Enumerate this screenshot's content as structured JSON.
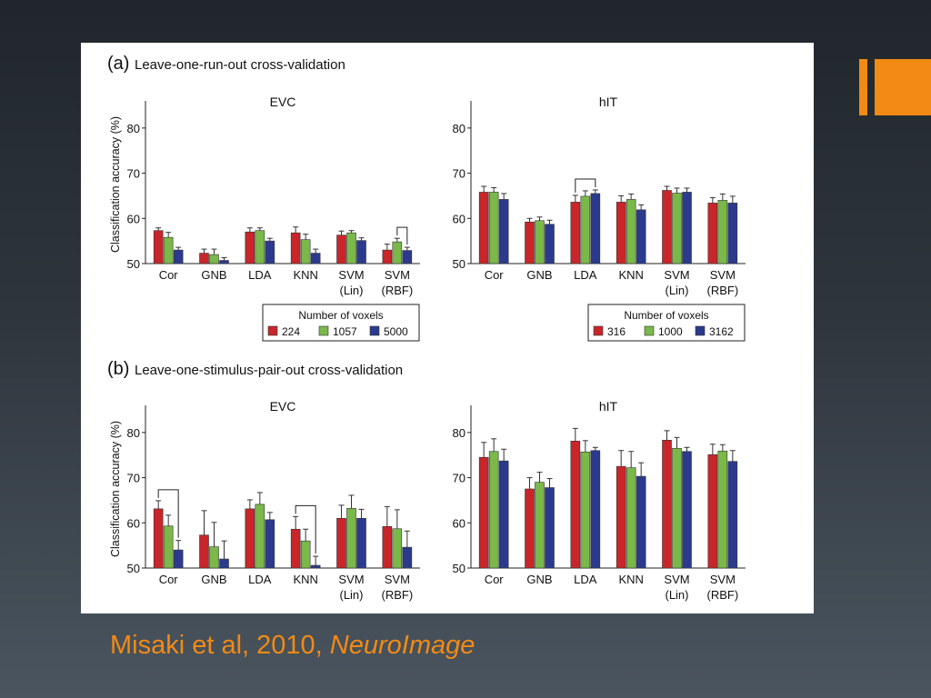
{
  "colors": {
    "accent": "#f28a14",
    "series": [
      "#c8262a",
      "#7ab84a",
      "#2b3a8c"
    ]
  },
  "citation": {
    "text": "Misaki et al, 2010, ",
    "journal": "NeuroImage"
  },
  "figure": {
    "y_axis_label": "Classification accuracy (%)",
    "categories": [
      "Cor",
      "GNB",
      "LDA",
      "KNN",
      "SVM\n(Lin)",
      "SVM\n(RBF)"
    ],
    "panels": [
      {
        "label": "(a)",
        "heading": "Leave-one-run-out cross-validation",
        "legend_title": "Number of voxels"
      },
      {
        "label": "(b)",
        "heading": "Leave-one-stimulus-pair-out cross-validation"
      }
    ]
  },
  "chart_data": [
    {
      "type": "bar",
      "panel": "(a)",
      "title": "EVC",
      "ylabel": "Classification accuracy (%)",
      "ylim": [
        50,
        85
      ],
      "yticks": [
        50,
        60,
        70,
        80
      ],
      "categories": [
        "Cor",
        "GNB",
        "LDA",
        "KNN",
        "SVM (Lin)",
        "SVM (RBF)"
      ],
      "legend_title": "Number of voxels",
      "series": [
        {
          "name": "224",
          "color": "#c8262a",
          "values": [
            57.3,
            52.3,
            57.0,
            56.8,
            56.3,
            53.0
          ],
          "errors": [
            0.6,
            0.9,
            0.9,
            1.3,
            0.9,
            1.3
          ]
        },
        {
          "name": "1057",
          "color": "#7ab84a",
          "values": [
            55.8,
            52.0,
            57.3,
            55.3,
            56.8,
            54.8
          ],
          "errors": [
            1.1,
            1.2,
            0.6,
            1.2,
            0.5,
            0.8
          ]
        },
        {
          "name": "5000",
          "color": "#2b3a8c",
          "values": [
            53.0,
            50.7,
            55.0,
            52.3,
            55.1,
            52.9
          ],
          "errors": [
            0.6,
            0.6,
            0.6,
            0.9,
            0.6,
            0.7
          ]
        }
      ],
      "significance": [
        {
          "category": "SVM (RBF)",
          "from": 1,
          "to": 2
        }
      ]
    },
    {
      "type": "bar",
      "panel": "(a)",
      "title": "hIT",
      "ylim": [
        50,
        85
      ],
      "yticks": [
        50,
        60,
        70,
        80
      ],
      "categories": [
        "Cor",
        "GNB",
        "LDA",
        "KNN",
        "SVM (Lin)",
        "SVM (RBF)"
      ],
      "legend_title": "Number of voxels",
      "series": [
        {
          "name": "316",
          "color": "#c8262a",
          "values": [
            65.8,
            59.2,
            63.6,
            63.6,
            66.2,
            63.4
          ],
          "errors": [
            1.3,
            0.8,
            1.5,
            1.4,
            0.9,
            1.2
          ]
        },
        {
          "name": "1000",
          "color": "#7ab84a",
          "values": [
            65.8,
            59.5,
            64.9,
            64.2,
            65.6,
            64.0
          ],
          "errors": [
            1.0,
            0.8,
            1.2,
            1.2,
            1.1,
            1.4
          ]
        },
        {
          "name": "3162",
          "color": "#2b3a8c",
          "values": [
            64.2,
            58.7,
            65.5,
            61.9,
            65.8,
            63.4
          ],
          "errors": [
            1.3,
            0.9,
            0.8,
            1.1,
            0.9,
            1.5
          ]
        }
      ],
      "significance": [
        {
          "category": "LDA",
          "from": 0,
          "to": 2
        }
      ]
    },
    {
      "type": "bar",
      "panel": "(b)",
      "title": "EVC",
      "ylabel": "Classification accuracy (%)",
      "ylim": [
        50,
        85
      ],
      "yticks": [
        50,
        60,
        70,
        80
      ],
      "categories": [
        "Cor",
        "GNB",
        "LDA",
        "KNN",
        "SVM (Lin)",
        "SVM (RBF)"
      ],
      "series": [
        {
          "color": "#c8262a",
          "values": [
            63.1,
            57.3,
            63.1,
            58.6,
            61.0,
            59.2
          ],
          "errors": [
            1.8,
            5.4,
            2.0,
            2.8,
            2.9,
            4.4
          ]
        },
        {
          "color": "#7ab84a",
          "values": [
            59.3,
            54.7,
            64.1,
            56.0,
            63.2,
            58.7
          ],
          "errors": [
            2.4,
            5.4,
            2.6,
            2.6,
            2.9,
            4.2
          ]
        },
        {
          "color": "#2b3a8c",
          "values": [
            54.0,
            52.0,
            60.7,
            50.6,
            61.0,
            54.6
          ],
          "errors": [
            2.1,
            4.0,
            1.6,
            2.0,
            2.0,
            3.6
          ]
        }
      ],
      "significance": [
        {
          "category": "Cor",
          "from": 0,
          "to": 2
        },
        {
          "category": "KNN",
          "from": 0,
          "to": 2
        }
      ]
    },
    {
      "type": "bar",
      "panel": "(b)",
      "title": "hIT",
      "ylim": [
        50,
        85
      ],
      "yticks": [
        50,
        60,
        70,
        80
      ],
      "categories": [
        "Cor",
        "GNB",
        "LDA",
        "KNN",
        "SVM (Lin)",
        "SVM (RBF)"
      ],
      "series": [
        {
          "color": "#c8262a",
          "values": [
            74.5,
            67.5,
            78.1,
            72.5,
            78.3,
            75.1
          ],
          "errors": [
            3.3,
            2.5,
            2.8,
            3.5,
            2.1,
            2.3
          ]
        },
        {
          "color": "#7ab84a",
          "values": [
            75.8,
            69.0,
            75.7,
            72.2,
            76.5,
            75.9
          ],
          "errors": [
            2.8,
            2.2,
            2.5,
            3.6,
            2.4,
            1.4
          ]
        },
        {
          "color": "#2b3a8c",
          "values": [
            73.7,
            67.8,
            76.0,
            70.3,
            75.8,
            73.6
          ],
          "errors": [
            2.6,
            2.0,
            0.7,
            3.0,
            0.9,
            2.4
          ]
        }
      ],
      "significance": []
    }
  ]
}
